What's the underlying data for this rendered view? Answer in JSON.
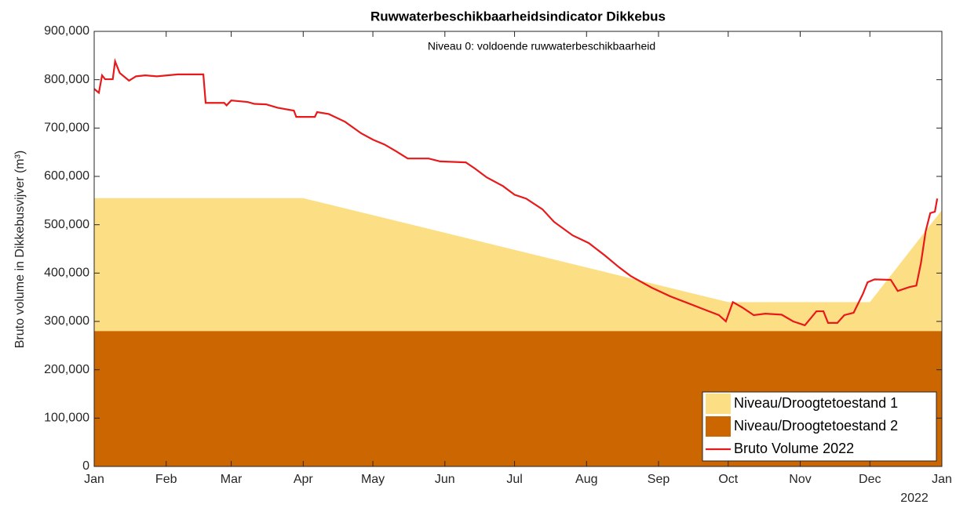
{
  "chart_data": {
    "type": "area_line",
    "title": "Ruwwaterbeschikbaarheidsindicator Dikkebus",
    "annotation": "Niveau 0: voldoende ruwwaterbeschikbaarheid",
    "y_label": "Bruto volume in Dikkebusvijver (m³)",
    "x_year_label": "2022",
    "xlim": [
      0,
      365
    ],
    "xticks": [
      {
        "value": 0,
        "label": "Jan"
      },
      {
        "value": 31,
        "label": "Feb"
      },
      {
        "value": 59,
        "label": "Mar"
      },
      {
        "value": 90,
        "label": "Apr"
      },
      {
        "value": 120,
        "label": "May"
      },
      {
        "value": 151,
        "label": "Jun"
      },
      {
        "value": 181,
        "label": "Jul"
      },
      {
        "value": 212,
        "label": "Aug"
      },
      {
        "value": 243,
        "label": "Sep"
      },
      {
        "value": 273,
        "label": "Oct"
      },
      {
        "value": 304,
        "label": "Nov"
      },
      {
        "value": 334,
        "label": "Dec"
      },
      {
        "value": 365,
        "label": "Jan"
      }
    ],
    "ylim": [
      0,
      900000
    ],
    "yticks": [
      0,
      {
        "value": 100000,
        "label": "100,000"
      },
      {
        "value": 200000,
        "label": "200,000"
      },
      {
        "value": 300000,
        "label": "300,000"
      },
      {
        "value": 400000,
        "label": "400,000"
      },
      {
        "value": 500000,
        "label": "500,000"
      },
      {
        "value": 600000,
        "label": "600,000"
      },
      {
        "value": 700000,
        "label": "700,000"
      },
      {
        "value": 800000,
        "label": "800,000"
      },
      {
        "value": 900000,
        "label": "900,000"
      }
    ],
    "legend_position": "lower right",
    "series": [
      {
        "name": "Niveau/Droogtetoestand 1",
        "kind": "area",
        "color": "#fcdf84",
        "x": [
          0,
          90,
          273,
          334,
          365
        ],
        "values": [
          555000,
          555000,
          340000,
          340000,
          530000
        ]
      },
      {
        "name": "Niveau/Droogtetoestand 2",
        "kind": "area",
        "color": "#cc6600",
        "x": [
          0,
          365
        ],
        "values": [
          280000,
          280000
        ]
      },
      {
        "name": "Bruto Volume 2022",
        "kind": "line",
        "color": "#e8191b",
        "x": [
          0,
          2,
          3.4,
          4.7,
          8,
          9,
          11,
          15,
          18,
          22,
          27,
          36,
          47,
          48,
          56,
          57,
          59,
          66,
          69,
          74,
          79,
          86,
          87,
          95,
          96,
          101,
          108,
          115,
          120,
          125,
          130,
          135,
          144,
          149,
          160,
          164,
          169,
          176,
          181,
          186,
          193,
          198,
          206,
          213,
          220,
          226,
          231,
          240,
          248,
          255,
          262,
          269,
          272,
          275,
          279,
          284,
          289,
          296,
          301,
          306,
          311,
          314,
          316,
          320,
          323,
          327,
          331,
          333,
          336,
          343,
          346,
          351,
          354,
          356,
          358,
          360,
          362,
          363
        ],
        "values": [
          781000,
          773000,
          809000,
          801000,
          801000,
          838000,
          814000,
          798000,
          807000,
          809000,
          807000,
          811000,
          811000,
          752000,
          752000,
          747000,
          757000,
          754000,
          750000,
          749000,
          742000,
          736000,
          723000,
          723000,
          733000,
          729000,
          713000,
          689000,
          676000,
          666000,
          652000,
          637000,
          637000,
          631000,
          629000,
          616000,
          598000,
          580000,
          562000,
          554000,
          532000,
          506000,
          478000,
          462000,
          436000,
          412000,
          394000,
          370000,
          352000,
          339000,
          326000,
          313000,
          300000,
          340000,
          329000,
          313000,
          316000,
          314000,
          300000,
          292000,
          321000,
          321000,
          297000,
          297000,
          313000,
          318000,
          357000,
          381000,
          387000,
          386000,
          363000,
          371000,
          374000,
          421000,
          486000,
          524000,
          527000,
          554000
        ]
      }
    ]
  }
}
